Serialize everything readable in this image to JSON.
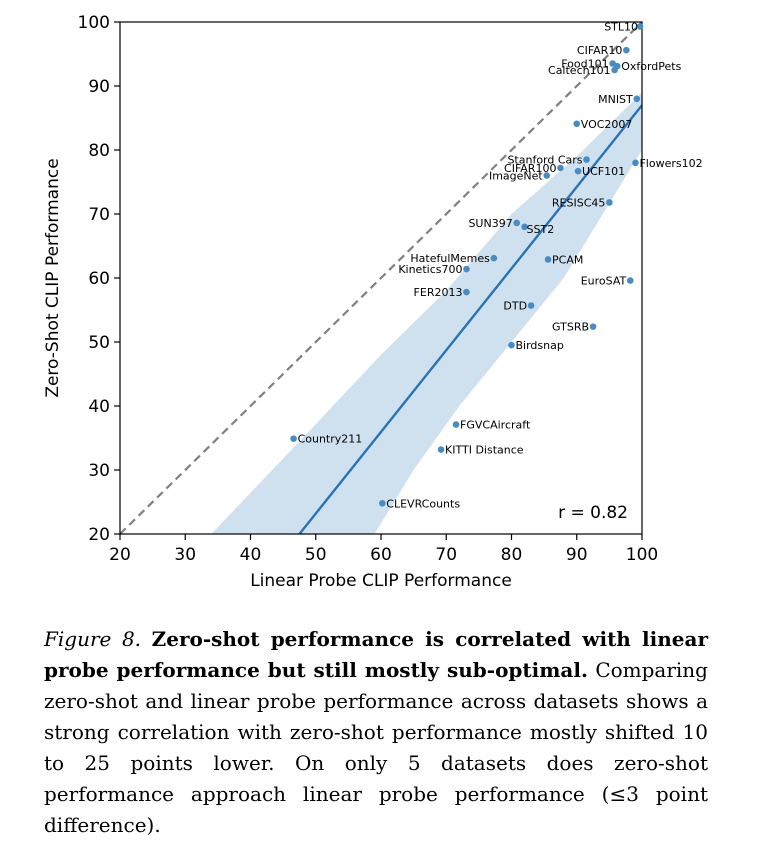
{
  "chart_data": {
    "type": "scatter",
    "xlabel": "Linear Probe CLIP Performance",
    "ylabel": "Zero-Shot CLIP Performance",
    "xlim": [
      20,
      100
    ],
    "ylim": [
      20,
      100
    ],
    "xticks": [
      20,
      30,
      40,
      50,
      60,
      70,
      80,
      90,
      100
    ],
    "yticks": [
      20,
      30,
      40,
      50,
      60,
      70,
      80,
      90,
      100
    ],
    "reference_line": "y = x (dashed)",
    "regression": {
      "line": [
        [
          47.5,
          20
        ],
        [
          100,
          87
        ]
      ],
      "band_upper": [
        [
          34,
          20
        ],
        [
          48,
          35
        ],
        [
          60,
          48
        ],
        [
          70,
          58
        ],
        [
          80,
          70
        ],
        [
          90,
          79
        ],
        [
          100,
          89
        ]
      ],
      "band_lower": [
        [
          59,
          20
        ],
        [
          65,
          30
        ],
        [
          72,
          40
        ],
        [
          80,
          50
        ],
        [
          88,
          60
        ],
        [
          94,
          70
        ],
        [
          100,
          80
        ]
      ]
    },
    "annotation": "r = 0.82",
    "points": [
      {
        "label": "STL10",
        "x": 99.7,
        "y": 99.3
      },
      {
        "label": "CIFAR10",
        "x": 97.6,
        "y": 95.6
      },
      {
        "label": "Food101",
        "x": 95.5,
        "y": 93.5
      },
      {
        "label": "OxfordPets",
        "x": 96.2,
        "y": 93.1
      },
      {
        "label": "Caltech101",
        "x": 95.8,
        "y": 92.5
      },
      {
        "label": "MNIST",
        "x": 99.2,
        "y": 88.0
      },
      {
        "label": "VOC2007",
        "x": 90.0,
        "y": 84.1
      },
      {
        "label": "Stanford Cars",
        "x": 91.5,
        "y": 78.5
      },
      {
        "label": "Flowers102",
        "x": 99.0,
        "y": 78.0
      },
      {
        "label": "CIFAR100",
        "x": 87.5,
        "y": 77.2
      },
      {
        "label": "UCF101",
        "x": 90.2,
        "y": 76.7
      },
      {
        "label": "ImageNet",
        "x": 85.4,
        "y": 76.0
      },
      {
        "label": "RESISC45",
        "x": 95.0,
        "y": 71.8
      },
      {
        "label": "SUN397",
        "x": 80.8,
        "y": 68.6
      },
      {
        "label": "SST2",
        "x": 82.0,
        "y": 68.0
      },
      {
        "label": "HatefulMemes",
        "x": 77.3,
        "y": 63.1
      },
      {
        "label": "PCAM",
        "x": 85.6,
        "y": 62.9
      },
      {
        "label": "Kinetics700",
        "x": 73.1,
        "y": 61.4
      },
      {
        "label": "EuroSAT",
        "x": 98.2,
        "y": 59.6
      },
      {
        "label": "FER2013",
        "x": 73.1,
        "y": 57.8
      },
      {
        "label": "DTD",
        "x": 83.0,
        "y": 55.7
      },
      {
        "label": "GTSRB",
        "x": 92.5,
        "y": 52.4
      },
      {
        "label": "Birdsnap",
        "x": 80.0,
        "y": 49.5
      },
      {
        "label": "FGVCAircraft",
        "x": 71.5,
        "y": 37.1
      },
      {
        "label": "Country211",
        "x": 46.6,
        "y": 34.9
      },
      {
        "label": "KITTI Distance",
        "x": 69.2,
        "y": 33.2
      },
      {
        "label": "CLEVRCounts",
        "x": 60.2,
        "y": 24.8
      }
    ]
  },
  "caption": {
    "figure_label": "Figure 8.",
    "title": "Zero-shot performance is correlated with linear probe performance but still mostly sub-optimal.",
    "body": "Comparing zero-shot and linear probe performance across datasets shows a strong correlation with zero-shot performance mostly shifted 10 to 25 points lower. On only 5 datasets does zero-shot performance approach linear probe performance (≤3 point difference)."
  },
  "colors": {
    "point": "#4a8cc2",
    "regression": "#2a74b5",
    "band": "#cfe0ef",
    "reference": "#808080"
  }
}
